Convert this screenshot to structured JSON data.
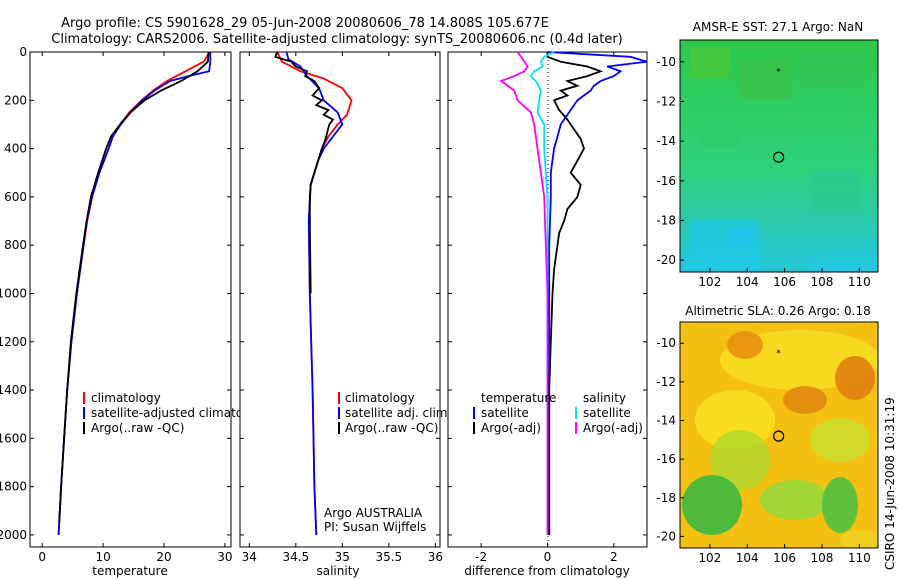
{
  "header": {
    "line1": "Argo profile: CS 5901628_29 05-Jun-2008 20080606_78 14.808S 105.677E",
    "line2": "Climatology: CARS2006. Satellite-adjusted climatology: synTS_20080606.nc (0.4d later)"
  },
  "footer_stamp": "CSIRO 14-Jun-2008 10:31:19",
  "colors": {
    "climatology": "#ff0000",
    "satellite": "#0000ff",
    "argo": "#000000",
    "salinity_satellite": "#00e5ee",
    "salinity_argo": "#ff00ff"
  },
  "chart_data": [
    {
      "type": "line",
      "id": "temperature-profile",
      "xlabel": "temperature",
      "xlim": [
        -2,
        31
      ],
      "ylim": [
        0,
        2050
      ],
      "y_reversed": true,
      "xticks": [
        0,
        10,
        20,
        30
      ],
      "yticks": [
        0,
        200,
        400,
        600,
        800,
        1000,
        1200,
        1400,
        1600,
        1800,
        2000
      ],
      "legend": [
        "climatology",
        "satellite-adjusted climatolog",
        "Argo(..raw -QC)"
      ],
      "series": [
        {
          "key": "climatology",
          "color": "#ff0000",
          "depth": [
            0,
            40,
            80,
            120,
            160,
            200,
            250,
            300,
            350,
            400,
            500,
            600,
            700,
            800,
            1000,
            1200,
            1400,
            1600,
            1800,
            2000
          ],
          "values": [
            27.5,
            26.5,
            23.5,
            20.5,
            18.2,
            16.3,
            14.3,
            12.8,
            11.6,
            10.9,
            9.4,
            8.2,
            7.4,
            6.8,
            5.7,
            4.8,
            4.1,
            3.6,
            3.1,
            2.7
          ]
        },
        {
          "key": "satellite",
          "color": "#0000ff",
          "depth": [
            0,
            40,
            80,
            100,
            120,
            160,
            200,
            250,
            300,
            350,
            400,
            500,
            600,
            700,
            800,
            1000,
            1200,
            1400,
            1600,
            1800,
            2000
          ],
          "values": [
            27.6,
            27.6,
            27.4,
            24,
            21,
            18.4,
            16.5,
            14.5,
            12.9,
            11.6,
            10.9,
            9.4,
            8.2,
            7.3,
            6.8,
            5.7,
            4.8,
            4.1,
            3.6,
            3.1,
            2.7
          ]
        },
        {
          "key": "argo",
          "color": "#000000",
          "depth": [
            0,
            40,
            80,
            120,
            160,
            200,
            250,
            300,
            350,
            400,
            500,
            600,
            700,
            800,
            1000,
            1200,
            1400,
            1600,
            1800,
            1950
          ],
          "values": [
            27.3,
            27.2,
            25.5,
            22.8,
            19.5,
            16.8,
            14.5,
            12.8,
            11.3,
            10.5,
            9.2,
            8.0,
            7.3,
            6.7,
            5.6,
            4.7,
            4.1,
            3.6,
            3.1,
            2.8
          ]
        }
      ]
    },
    {
      "type": "line",
      "id": "salinity-profile",
      "xlabel": "salinity",
      "xlim": [
        33.9,
        36.05
      ],
      "ylim": [
        0,
        2050
      ],
      "y_reversed": true,
      "xticks": [
        34,
        34.5,
        35,
        35.5,
        36
      ],
      "legend": [
        "climatology",
        "satellite adj. clim.",
        "Argo(..raw -QC)"
      ],
      "annotation": [
        "Argo AUSTRALIA",
        "PI: Susan Wijffels"
      ],
      "series": [
        {
          "key": "climatology",
          "color": "#ff0000",
          "depth": [
            0,
            40,
            80,
            110,
            150,
            200,
            260,
            300,
            350,
            400,
            450,
            500,
            550,
            700,
            1000,
            1400,
            1800,
            2000
          ],
          "values": [
            34.3,
            34.35,
            34.55,
            34.8,
            35.0,
            35.1,
            35.05,
            34.95,
            34.85,
            34.78,
            34.74,
            34.7,
            34.66,
            34.64,
            34.65,
            34.68,
            34.7,
            34.72
          ]
        },
        {
          "key": "satellite",
          "color": "#0000ff",
          "depth": [
            0,
            30,
            60,
            100,
            150,
            200,
            250,
            300,
            350,
            400,
            450,
            500,
            550,
            700,
            1000,
            1400,
            1800,
            2000
          ],
          "values": [
            34.4,
            34.42,
            34.55,
            34.62,
            34.75,
            34.8,
            34.95,
            35.0,
            34.9,
            34.8,
            34.74,
            34.7,
            34.66,
            34.64,
            34.65,
            34.68,
            34.7,
            34.72
          ]
        },
        {
          "key": "argo",
          "color": "#000000",
          "depth": [
            0,
            20,
            40,
            60,
            80,
            100,
            120,
            150,
            180,
            200,
            220,
            240,
            260,
            280,
            300,
            330,
            360,
            400,
            450,
            500,
            550,
            600,
            700,
            1000
          ],
          "values": [
            34.3,
            34.28,
            34.45,
            34.5,
            34.62,
            34.6,
            34.7,
            34.75,
            34.68,
            34.78,
            34.72,
            34.85,
            34.8,
            34.9,
            34.86,
            34.84,
            34.82,
            34.78,
            34.74,
            34.7,
            34.66,
            34.65,
            34.65,
            34.66
          ]
        }
      ]
    },
    {
      "type": "line",
      "id": "difference-profile",
      "xlabel": "difference from climatology",
      "xlim": [
        -3,
        3
      ],
      "ylim": [
        0,
        2050
      ],
      "y_reversed": true,
      "xticks": [
        -2,
        0,
        2
      ],
      "legend": [
        "temperature",
        "satellite",
        "Argo(-adj)",
        "salinity",
        "satellite",
        "Argo(-adj)"
      ],
      "series": [
        {
          "key": "t_satellite",
          "color": "#0000ff",
          "depth": [
            0,
            20,
            40,
            60,
            80,
            100,
            120,
            140,
            160,
            200,
            260,
            300,
            350,
            400,
            500,
            600,
            800,
            1000,
            1400,
            2000
          ],
          "values": [
            0,
            2.5,
            3.0,
            1.8,
            2.2,
            2.0,
            1.6,
            1.4,
            1.3,
            0.9,
            0.6,
            0.4,
            0.3,
            0.2,
            0.1,
            0.1,
            0.05,
            0.05,
            0.05,
            0.05
          ]
        },
        {
          "key": "t_argo",
          "color": "#000000",
          "depth": [
            0,
            20,
            40,
            50,
            60,
            80,
            100,
            120,
            140,
            160,
            180,
            200,
            240,
            280,
            320,
            360,
            400,
            450,
            500,
            550,
            600,
            650,
            700,
            750,
            800,
            900,
            1000,
            1200,
            1400,
            1600,
            1800,
            2000
          ],
          "values": [
            0,
            0,
            0.4,
            0.8,
            1.2,
            1.6,
            1.2,
            0.6,
            0.9,
            0.4,
            0.6,
            0.2,
            0.35,
            0.6,
            0.8,
            1.0,
            1.1,
            0.9,
            0.7,
            1.0,
            0.9,
            0.6,
            0.5,
            0.35,
            0.3,
            0.2,
            0.15,
            0.1,
            0.05,
            0.05,
            0.05,
            0.05
          ]
        },
        {
          "key": "s_satellite",
          "color": "#00e5ee",
          "depth": [
            0,
            20,
            40,
            60,
            80,
            100,
            130,
            160,
            200,
            250,
            300,
            400,
            500,
            600,
            800,
            1000,
            1400,
            2000
          ],
          "values": [
            0.2,
            -0.1,
            -0.2,
            -0.15,
            -0.4,
            -0.5,
            -0.3,
            -0.2,
            -0.25,
            -0.3,
            -0.1,
            -0.1,
            -0.05,
            0,
            0,
            0,
            0,
            0
          ]
        },
        {
          "key": "s_argo",
          "color": "#ff00ff",
          "depth": [
            0,
            20,
            40,
            60,
            80,
            100,
            120,
            160,
            200,
            250,
            300,
            400,
            500,
            600,
            800,
            1000,
            1400,
            2000
          ],
          "values": [
            -0.9,
            -0.8,
            -0.7,
            -0.6,
            -0.7,
            -1.0,
            -1.4,
            -1.0,
            -0.9,
            -0.5,
            -0.4,
            -0.3,
            -0.2,
            -0.1,
            -0.05,
            0,
            0,
            0
          ]
        }
      ]
    },
    {
      "type": "heatmap",
      "id": "sst-map",
      "title": "AMSR-E SST: 27.1 Argo: NaN",
      "xlim": [
        100.4,
        111
      ],
      "ylim": [
        -20.6,
        -8.9
      ],
      "xticks": [
        102,
        104,
        106,
        108,
        110
      ],
      "yticks": [
        -10,
        -12,
        -14,
        -16,
        -18,
        -20
      ],
      "float_positions": [
        {
          "lon": 105.67,
          "lat": -10.5
        },
        {
          "lon": 105.68,
          "lat": -14.81
        }
      ]
    },
    {
      "type": "heatmap",
      "id": "sla-map",
      "title": "Altimetric SLA: 0.26 Argo: 0.18",
      "xlim": [
        100.4,
        111
      ],
      "ylim": [
        -20.6,
        -8.9
      ],
      "xticks": [
        102,
        104,
        106,
        108,
        110
      ],
      "yticks": [
        -10,
        -12,
        -14,
        -16,
        -18,
        -20
      ],
      "float_positions": [
        {
          "lon": 105.67,
          "lat": -10.5
        },
        {
          "lon": 105.68,
          "lat": -14.81
        }
      ]
    }
  ]
}
